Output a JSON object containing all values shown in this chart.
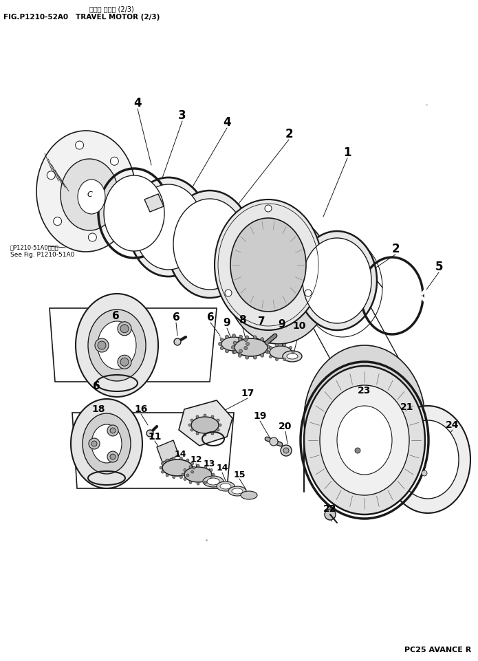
{
  "title_jp": "ソココ モータ (2/3)",
  "title_en": "FIG.P1210-52A0   TRAVEL MOTOR (2/3)",
  "footer": "PC25 AVANCE R",
  "ref_jp": "図P1210-51A0図参照",
  "ref_en": "See Fig. P1210-51A0",
  "bg_color": "#ffffff",
  "line_color": "#1a1a1a"
}
